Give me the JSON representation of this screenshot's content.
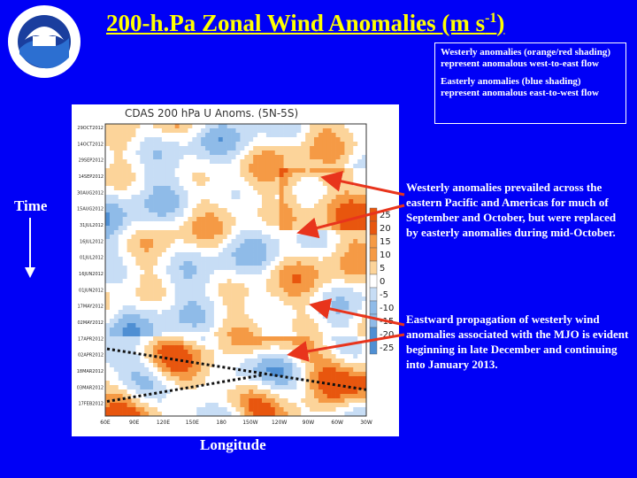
{
  "slide": {
    "title_main": "200-h.Pa Zonal Wind Anomalies (m s",
    "title_sup": "-1",
    "title_close": ")",
    "legend": {
      "westerly": "Westerly anomalies (orange/red shading) represent anomalous west-to-east flow",
      "easterly": "Easterly anomalies (blue shading) represent anomalous east-to-west flow"
    },
    "axis_time": "Time",
    "axis_longitude": "Longitude",
    "note_westerly": "Westerly anomalies prevailed across the eastern Pacific and Americas for much of September and October, but were replaced by easterly anomalies during mid-October.",
    "note_mjo": "Eastward propagation of westerly wind anomalies associated with the MJO is evident beginning in late December and continuing into January 2013."
  },
  "figure": {
    "title": "CDAS 200 hPa U Anoms. (5N-5S)",
    "x_ticks": [
      "60E",
      "90E",
      "120E",
      "150E",
      "180",
      "150W",
      "120W",
      "90W",
      "60W",
      "30W"
    ],
    "y_ticks": [
      "29OCT2012",
      "14OCT2012",
      "29SEP2012",
      "14SEP2012",
      "30AUG2012",
      "15AUG2012",
      "31JUL2012",
      "16JUL2012",
      "01JUL2012",
      "16JUN2012",
      "01JUN2012",
      "17MAY2012",
      "02MAY2012",
      "17APR2012",
      "02APR2012",
      "18MAR2012",
      "03MAR2012",
      "17FEB2012"
    ],
    "colorbar_labels": [
      "25",
      "20",
      "15",
      "10",
      "5",
      "0",
      "-5",
      "-10",
      "-15",
      "-20",
      "-25"
    ],
    "colors": {
      "westerly_strong": "#e8560e",
      "westerly_moderate": "#f59a45",
      "westerly_weak": "#fcd49a",
      "neutral": "#ffffff",
      "easterly_weak": "#c7ddf5",
      "easterly_moderate": "#8fbbe8",
      "easterly_strong": "#4f8fd3"
    }
  },
  "colors": {
    "background": "#0000f6",
    "title": "#ffff00",
    "text": "#ffffff",
    "arrow": "#e8341c"
  },
  "icons": {
    "logo": "noaa-logo"
  }
}
